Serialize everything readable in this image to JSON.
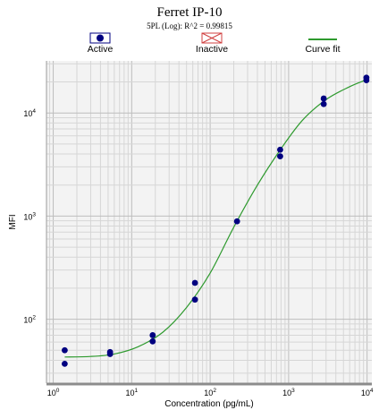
{
  "chart_data": {
    "type": "scatter",
    "title": "Ferret IP-10",
    "subtitle": "5PL (Log): R^2 = 0.99815",
    "xlabel": "Concentration (pg/mL)",
    "ylabel": "MFI",
    "x_scale": "log",
    "y_scale": "log",
    "xlim": [
      0.82,
      11500
    ],
    "ylim": [
      24,
      32000
    ],
    "grid": true,
    "legend_position": "top",
    "legend": [
      {
        "label": "Active",
        "marker": "filled-circle",
        "color": "#000080"
      },
      {
        "label": "Inactive",
        "marker": "crossed-box",
        "color": "#d04040"
      },
      {
        "label": "Curve fit",
        "marker": "line",
        "color": "#2e9a2e"
      }
    ],
    "x_ticks": [
      {
        "value": 1,
        "base": "10",
        "exp": "0"
      },
      {
        "value": 10,
        "base": "10",
        "exp": "1"
      },
      {
        "value": 100,
        "base": "10",
        "exp": "2"
      },
      {
        "value": 1000,
        "base": "10",
        "exp": "3"
      },
      {
        "value": 10000,
        "base": "10",
        "exp": "4"
      }
    ],
    "y_ticks": [
      {
        "value": 100,
        "base": "10",
        "exp": "2"
      },
      {
        "value": 1000,
        "base": "10",
        "exp": "3"
      },
      {
        "value": 10000,
        "base": "10",
        "exp": "4"
      }
    ],
    "series": [
      {
        "name": "Active",
        "type": "scatter",
        "color": "#000080",
        "points": [
          {
            "x": 1.4,
            "y": 50
          },
          {
            "x": 1.4,
            "y": 37
          },
          {
            "x": 5.3,
            "y": 48
          },
          {
            "x": 5.3,
            "y": 46
          },
          {
            "x": 18.5,
            "y": 70
          },
          {
            "x": 18.5,
            "y": 61
          },
          {
            "x": 64,
            "y": 225
          },
          {
            "x": 64,
            "y": 155
          },
          {
            "x": 220,
            "y": 890
          },
          {
            "x": 780,
            "y": 4400
          },
          {
            "x": 780,
            "y": 3800
          },
          {
            "x": 2800,
            "y": 13800
          },
          {
            "x": 2800,
            "y": 12200
          },
          {
            "x": 9800,
            "y": 22000
          },
          {
            "x": 9800,
            "y": 20800
          }
        ]
      },
      {
        "name": "Curve fit",
        "type": "line",
        "color": "#2e9a2e",
        "points": [
          {
            "x": 1.4,
            "y": 43
          },
          {
            "x": 3,
            "y": 43.5
          },
          {
            "x": 6,
            "y": 46
          },
          {
            "x": 12,
            "y": 54
          },
          {
            "x": 25,
            "y": 75
          },
          {
            "x": 50,
            "y": 130
          },
          {
            "x": 100,
            "y": 280
          },
          {
            "x": 200,
            "y": 780
          },
          {
            "x": 400,
            "y": 2000
          },
          {
            "x": 800,
            "y": 4500
          },
          {
            "x": 1500,
            "y": 8500
          },
          {
            "x": 3000,
            "y": 13500
          },
          {
            "x": 6000,
            "y": 18000
          },
          {
            "x": 9800,
            "y": 21000
          }
        ]
      }
    ]
  }
}
